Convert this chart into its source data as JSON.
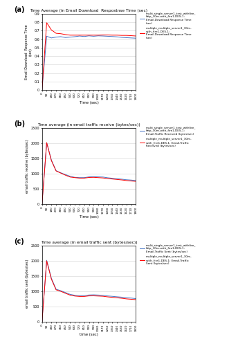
{
  "title_a": "Time Average (in Email Download  Respostnse Time (sec)",
  "title_b": "Time average (in email traffic receive (bytes/sec))",
  "title_c": "Time average (in email traffic sent (bytes/sec))",
  "xlabel_a": "Time (sec)",
  "xlabel_b": "Time (sec)",
  "xlabel_c": "time (sec)",
  "ylabel_a": "Email Download  Response Time\n(sec)",
  "ylabel_b": "email traffic receive (bytes/sec)",
  "ylabel_c": "email traffic sent (bytes/sec)",
  "x_ticks": [
    0,
    90,
    180,
    270,
    360,
    450,
    540,
    630,
    720,
    810,
    900,
    990,
    1080,
    1170,
    1260,
    1350,
    1440,
    1530,
    1620,
    1710,
    1800
  ],
  "ylim_a": [
    0,
    0.9
  ],
  "ylim_b": [
    0,
    2500
  ],
  "ylim_c": [
    0,
    2500
  ],
  "yticks_a": [
    0,
    0.1,
    0.2,
    0.3,
    0.4,
    0.5,
    0.6,
    0.7,
    0.8,
    0.9
  ],
  "yticks_bc": [
    0,
    500,
    1000,
    1500,
    2000,
    2500
  ],
  "color_blue": "#4472C4",
  "color_red": "#FF0000",
  "legend_a_blue": "multi_single_server1_test_withfire_\nhttp_30m-with_fire1-DES-1:\nEmail.Download Response Time\n(sec)",
  "legend_a_red": "multiple_multiple_server1_30m-\nwith_fire1-DES-1:\nEmail.Download Response Time\n(sec)",
  "legend_b_blue": "multi_single_server1_test_withfire_\nhttp_30m-with_fire1-DES-1:\nEmail.Traffic Received (bytes/sec)",
  "legend_b_red": "multiple_multiple_server1_30m-\nwith_fire1-DES-1: Email.Traffic\nReceived (bytes/sec)",
  "legend_c_blue": "multi_single_server1_test_withfire_\nhttp_30m-with_fire1-DES-1:\nEmail.Traffic Sent (bytes/sec)",
  "legend_c_red": "multiple_multiple_server1_30m-\nwith_fire1-DES-1: Email.Traffic\nSent (bytes/sec)",
  "panel_labels": [
    "(a)",
    "(b)",
    "(c)"
  ],
  "blue_a": [
    0.0,
    0.635,
    0.615,
    0.625,
    0.63,
    0.62,
    0.625,
    0.63,
    0.638,
    0.632,
    0.64,
    0.635,
    0.64,
    0.638,
    0.635,
    0.632,
    0.628,
    0.622,
    0.618,
    0.615,
    0.612
  ],
  "red_a": [
    0.0,
    0.795,
    0.71,
    0.67,
    0.665,
    0.655,
    0.648,
    0.648,
    0.648,
    0.648,
    0.648,
    0.648,
    0.648,
    0.65,
    0.65,
    0.648,
    0.648,
    0.645,
    0.645,
    0.642,
    0.638
  ],
  "blue_b": [
    0,
    2020,
    1450,
    1100,
    1030,
    970,
    915,
    880,
    870,
    870,
    895,
    900,
    895,
    890,
    865,
    850,
    835,
    820,
    800,
    790,
    775
  ],
  "red_b": [
    0,
    2020,
    1430,
    1090,
    1020,
    950,
    890,
    870,
    855,
    855,
    875,
    880,
    870,
    860,
    840,
    825,
    810,
    795,
    775,
    760,
    748
  ],
  "blue_c": [
    0,
    2020,
    1430,
    1070,
    1020,
    960,
    900,
    870,
    855,
    858,
    880,
    885,
    878,
    870,
    848,
    835,
    820,
    808,
    790,
    778,
    760
  ],
  "red_c": [
    0,
    2000,
    1400,
    1050,
    1000,
    935,
    875,
    845,
    832,
    832,
    850,
    852,
    845,
    838,
    818,
    802,
    788,
    772,
    752,
    740,
    728
  ]
}
